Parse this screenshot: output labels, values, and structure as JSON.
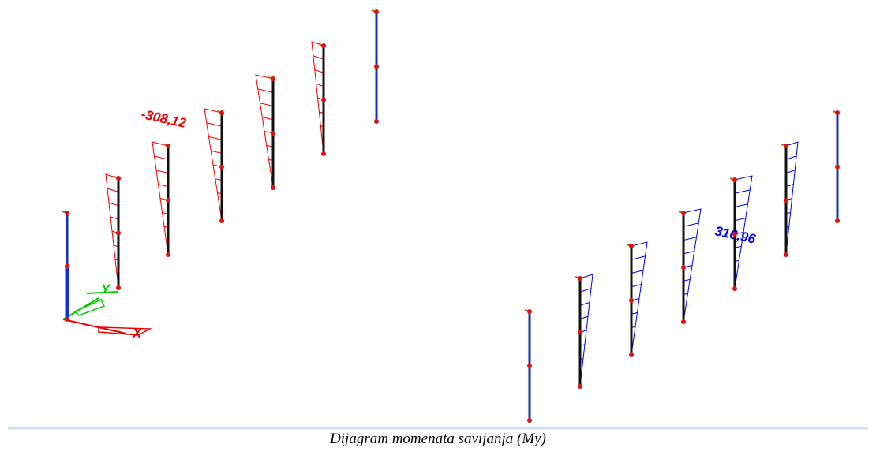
{
  "diagram": {
    "labels": {
      "min_moment": "-308,12",
      "max_moment": "316,96"
    },
    "axes": {
      "x": "X",
      "y": "Y"
    },
    "caption": "Dijagram momenata savijanja (My)"
  }
}
